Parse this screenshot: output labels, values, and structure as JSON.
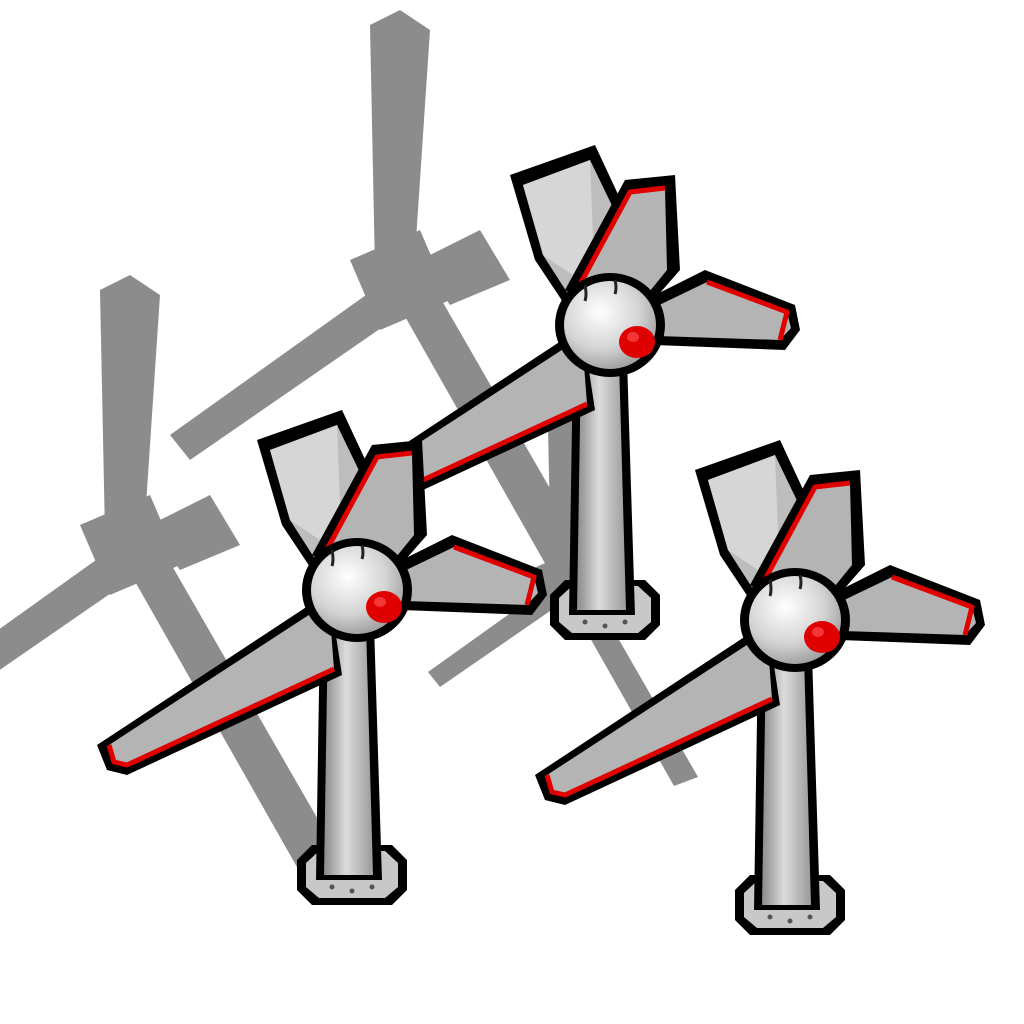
{
  "scene": {
    "sprite": "wind-turbine",
    "turbine_count": 3,
    "colors": {
      "background": "#ffffff",
      "shadow": "#8c8c8c",
      "outline": "#000000",
      "body_light": "#d9d9d9",
      "body_mid": "#b3b3b3",
      "body_dark": "#7a7a7a",
      "accent": "#e00000"
    }
  }
}
